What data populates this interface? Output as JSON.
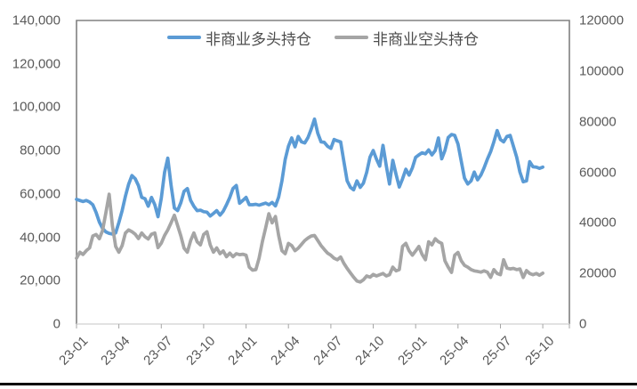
{
  "chart_data": {
    "type": "line",
    "title": "",
    "legend_position": "top",
    "grid": false,
    "x_tick_labels": [
      "23-01",
      "23-04",
      "23-07",
      "23-10",
      "24-01",
      "24-04",
      "24-07",
      "24-10",
      "25-01",
      "25-04",
      "25-07",
      "25-10"
    ],
    "x_tick_weeks": [
      0,
      13,
      26,
      39,
      52,
      65,
      78,
      91,
      104,
      117,
      130,
      143
    ],
    "left_axis": {
      "min": 0,
      "max": 140000,
      "step": 20000,
      "tick_labels_top_to_bottom": [
        "140,000",
        "120,000",
        "100,000",
        "80,000",
        "60,000",
        "40,000",
        "20,000",
        "0"
      ]
    },
    "right_axis": {
      "min": 0,
      "max": 120000,
      "step": 20000,
      "tick_labels_top_to_bottom": [
        "120000",
        "100000",
        "80000",
        "60000",
        "40000",
        "20000",
        "0"
      ]
    },
    "series": [
      {
        "name": "非商业多头持仓",
        "axis": "left",
        "color": "#5B9BD5",
        "values": [
          57500,
          57000,
          56500,
          57000,
          56300,
          55000,
          51500,
          47000,
          44100,
          42500,
          41800,
          41500,
          42000,
          46800,
          52300,
          59000,
          64500,
          68500,
          67000,
          63900,
          58400,
          57800,
          54300,
          58400,
          55000,
          49500,
          58000,
          70000,
          76500,
          64000,
          53500,
          52300,
          56000,
          61200,
          62500,
          57000,
          54300,
          52300,
          52500,
          51800,
          51600,
          49800,
          51000,
          52300,
          50200,
          52000,
          55000,
          58400,
          62500,
          63900,
          55700,
          57000,
          58400,
          55000,
          55000,
          55200,
          54800,
          55300,
          55800,
          55000,
          56100,
          54500,
          58500,
          66000,
          76000,
          82000,
          85800,
          81700,
          86500,
          84000,
          83500,
          86000,
          90000,
          94500,
          88000,
          84000,
          83800,
          82000,
          81000,
          85100,
          84500,
          84000,
          75000,
          66000,
          63000,
          61900,
          66000,
          63000,
          65000,
          70000,
          77000,
          80000,
          76000,
          72800,
          82400,
          73000,
          64600,
          75500,
          69000,
          63200,
          67000,
          71400,
          68700,
          72000,
          76900,
          78000,
          79000,
          78500,
          80300,
          78000,
          80000,
          85800,
          76200,
          80000,
          86000,
          87400,
          87000,
          83000,
          75000,
          67300,
          64600,
          66000,
          70100,
          66500,
          68700,
          72000,
          76000,
          79500,
          84000,
          89200,
          85100,
          84000,
          86500,
          87000,
          82000,
          76900,
          70100,
          65600,
          66000,
          74900,
          72500,
          72400,
          71800,
          72400
        ]
      },
      {
        "name": "非商业空头持仓",
        "axis": "right",
        "color": "#A5A5A5",
        "values": [
          26000,
          28400,
          27500,
          29000,
          30100,
          34800,
          35400,
          33700,
          37000,
          44000,
          51300,
          39000,
          30700,
          28400,
          31000,
          36000,
          37200,
          36500,
          35500,
          33800,
          36000,
          34500,
          33600,
          35500,
          36000,
          30200,
          32000,
          35000,
          37200,
          40000,
          43000,
          39000,
          34800,
          30000,
          28400,
          33000,
          36000,
          32500,
          31300,
          35400,
          36500,
          31300,
          28400,
          30100,
          27800,
          28900,
          26600,
          28000,
          26600,
          27800,
          27400,
          27600,
          27200,
          22500,
          21300,
          21500,
          26000,
          32500,
          38000,
          43600,
          40000,
          42500,
          35000,
          29000,
          27800,
          31900,
          31000,
          29000,
          30000,
          31500,
          33000,
          34000,
          34800,
          35000,
          33000,
          31000,
          29500,
          28000,
          27200,
          26000,
          25400,
          26500,
          24000,
          22000,
          20200,
          18500,
          17000,
          16600,
          17500,
          19000,
          18500,
          19600,
          19000,
          19500,
          20000,
          19000,
          19500,
          22500,
          21000,
          21500,
          30700,
          31900,
          29000,
          27200,
          28900,
          30700,
          27500,
          25400,
          32500,
          31300,
          33700,
          32500,
          31900,
          25000,
          22500,
          20400,
          27200,
          28300,
          25000,
          23200,
          22500,
          21500,
          21000,
          20800,
          20500,
          21000,
          20500,
          18400,
          21500,
          20000,
          19500,
          25400,
          22100,
          21800,
          22000,
          21500,
          21800,
          18400,
          21100,
          20000,
          19500,
          20000,
          19300,
          20100
        ]
      }
    ]
  },
  "legend": {
    "items": [
      {
        "label": "非商业多头持仓",
        "color": "#5B9BD5"
      },
      {
        "label": "非商业空头持仓",
        "color": "#A5A5A5"
      }
    ]
  },
  "colors": {
    "long_series": "#5B9BD5",
    "short_series": "#A5A5A5",
    "axis_text": "#595959",
    "plot_border": "#808080",
    "bottom_axis_line": "#D9D9D9",
    "bottom_divider": "#000000"
  }
}
